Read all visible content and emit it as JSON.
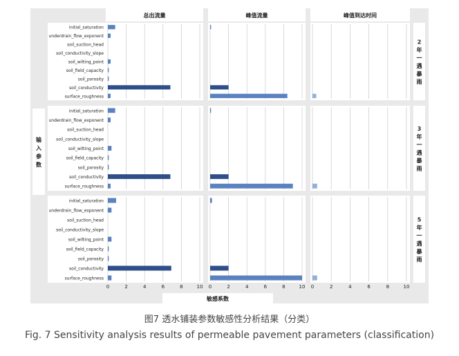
{
  "chart_data": {
    "type": "bar",
    "orientation": "horizontal",
    "column_titles": [
      "总出流量",
      "峰值流量",
      "峰值到达时间"
    ],
    "row_titles": [
      "2年一遇暴雨",
      "3年一遇暴雨",
      "5年一遇暴雨"
    ],
    "ylabel": "输入参数",
    "xlabel": "敏感系数",
    "categories": [
      "initial_saturation",
      "underdrain_flow_exponent",
      "soil_suction_head",
      "soil_conductivity_slope",
      "soil_wilting_point",
      "soil_field_capacity",
      "soil_porosity",
      "soil_conductivity",
      "surface_roughness"
    ],
    "xticks": [
      "0",
      "2",
      "4",
      "6",
      "8",
      "10"
    ],
    "xlim": [
      0,
      10
    ],
    "grid": true,
    "panels": [
      {
        "row": 0,
        "col": 0,
        "values": [
          0.8,
          0.3,
          0.0,
          0.0,
          0.3,
          0.1,
          0.1,
          6.8,
          0.3
        ]
      },
      {
        "row": 0,
        "col": 1,
        "values": [
          0.1,
          0.0,
          0.0,
          0.0,
          0.0,
          0.0,
          0.0,
          2.0,
          8.4
        ]
      },
      {
        "row": 0,
        "col": 2,
        "values": [
          0.0,
          0.0,
          0.0,
          0.0,
          0.0,
          0.0,
          0.0,
          0.0,
          0.4
        ]
      },
      {
        "row": 1,
        "col": 0,
        "values": [
          0.8,
          0.3,
          0.0,
          0.0,
          0.4,
          0.1,
          0.1,
          6.8,
          0.3
        ]
      },
      {
        "row": 1,
        "col": 1,
        "values": [
          0.1,
          0.0,
          0.0,
          0.0,
          0.0,
          0.0,
          0.0,
          2.0,
          9.0
        ]
      },
      {
        "row": 1,
        "col": 2,
        "values": [
          0.0,
          0.0,
          0.0,
          0.0,
          0.0,
          0.0,
          0.0,
          0.0,
          0.5
        ]
      },
      {
        "row": 2,
        "col": 0,
        "values": [
          0.9,
          0.4,
          0.0,
          0.0,
          0.4,
          0.1,
          0.1,
          6.9,
          0.4
        ]
      },
      {
        "row": 2,
        "col": 1,
        "values": [
          0.2,
          0.0,
          0.0,
          0.0,
          0.0,
          0.0,
          0.0,
          2.0,
          10.0
        ]
      },
      {
        "row": 2,
        "col": 2,
        "values": [
          0.0,
          0.0,
          0.0,
          0.0,
          0.0,
          0.0,
          0.0,
          0.0,
          0.5
        ]
      }
    ],
    "colors": {
      "soil_conductivity": "#2f4f8a",
      "default": "#5b82c0",
      "alt_light": "#8fb0dc"
    }
  },
  "caption": {
    "cn": "图7  透水铺装参数敏感性分析结果（分类）",
    "en": "Fig. 7 Sensitivity analysis results of permeable pavement parameters (classification)"
  }
}
